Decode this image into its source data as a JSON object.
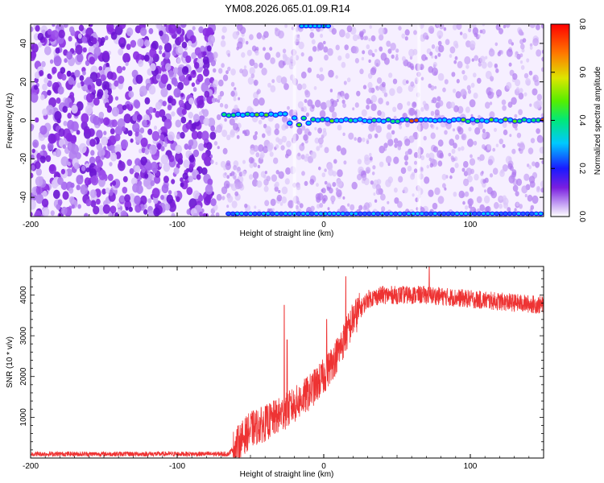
{
  "title": "YM08.2026.065.01.09.R14",
  "charts": [
    {
      "type": "heatmap",
      "xlabel": "Height of straight line (km)",
      "ylabel": "Frequency (Hz)",
      "xlim": [
        -200,
        150
      ],
      "ylim": [
        -50,
        50
      ],
      "xticks": [
        -200,
        -100,
        0,
        100
      ],
      "yticks": [
        -40,
        -20,
        0,
        20,
        40
      ],
      "colorbar": {
        "label": "Normalized spectral amplitude",
        "range": [
          0.0,
          0.8
        ],
        "ticks": [
          "0.0",
          "0.2",
          "0.4",
          "0.6",
          "0.8"
        ]
      }
    },
    {
      "type": "line",
      "xlabel": "Height of straight line (km)",
      "ylabel": "SNR (10 * v/v)",
      "xlim": [
        -200,
        150
      ],
      "ylim": [
        0,
        4700
      ],
      "xticks": [
        -200,
        -100,
        0,
        100
      ],
      "yticks": [
        1000,
        2000,
        3000,
        4000
      ],
      "series_color": "#ee3333",
      "trend": [
        {
          "x": -200,
          "y": 100
        },
        {
          "x": -65,
          "y": 100
        },
        {
          "x": -60,
          "y": 300
        },
        {
          "x": -50,
          "y": 700
        },
        {
          "x": -40,
          "y": 850
        },
        {
          "x": -30,
          "y": 1050
        },
        {
          "x": -20,
          "y": 1300
        },
        {
          "x": -10,
          "y": 1600
        },
        {
          "x": 0,
          "y": 2000
        },
        {
          "x": 10,
          "y": 2600
        },
        {
          "x": 20,
          "y": 3400
        },
        {
          "x": 30,
          "y": 3900
        },
        {
          "x": 40,
          "y": 4000
        },
        {
          "x": 70,
          "y": 4000
        },
        {
          "x": 100,
          "y": 3900
        },
        {
          "x": 150,
          "y": 3750
        }
      ],
      "spikes": [
        {
          "x": -27,
          "y": 3750
        },
        {
          "x": -25,
          "y": 2900
        },
        {
          "x": 2,
          "y": 3400
        },
        {
          "x": 15,
          "y": 4450
        },
        {
          "x": 72,
          "y": 4700
        }
      ]
    }
  ]
}
